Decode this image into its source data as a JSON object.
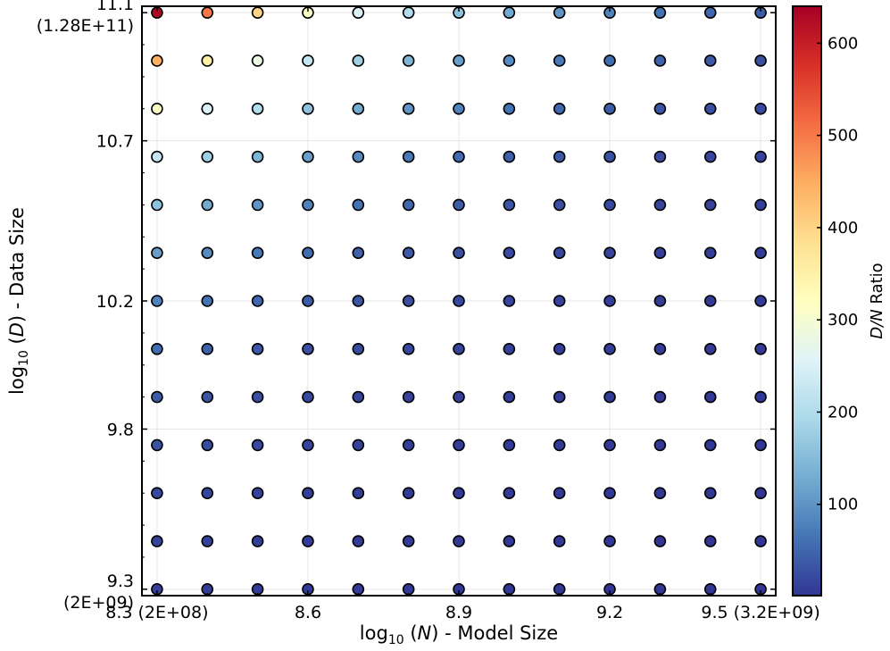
{
  "chart_data": {
    "type": "scatter",
    "xlabel": {
      "prefix": "log",
      "sub": "10",
      "var": "N",
      "suffix": " - Model Size"
    },
    "ylabel": {
      "prefix": "log",
      "sub": "10",
      "var": "D",
      "suffix": " - Data Size"
    },
    "x_values": [
      8.3,
      8.4,
      8.5,
      8.6,
      8.7,
      8.8,
      8.9,
      9.0,
      9.1,
      9.2,
      9.3,
      9.4,
      9.5
    ],
    "y_values": [
      9.3,
      9.45,
      9.6,
      9.75,
      9.9,
      10.05,
      10.2,
      10.35,
      10.5,
      10.65,
      10.8,
      10.95,
      11.1
    ],
    "x_ticks": [
      {
        "value": 8.3,
        "label": "8.3 (2E+08)"
      },
      {
        "value": 8.6,
        "label": "8.6"
      },
      {
        "value": 8.9,
        "label": "8.9"
      },
      {
        "value": 9.2,
        "label": "9.2"
      },
      {
        "value": 9.5,
        "label": "9.5 (3.2E+09)"
      }
    ],
    "y_ticks": [
      {
        "value": 11.1,
        "label": "11.1",
        "label2": "(1.28E+11)"
      },
      {
        "value": 10.7,
        "label": "10.7",
        "label2": ""
      },
      {
        "value": 10.2,
        "label": "10.2",
        "label2": ""
      },
      {
        "value": 9.8,
        "label": "9.8",
        "label2": ""
      },
      {
        "value": 9.3,
        "label": "9.3",
        "label2": "(2E+09)"
      }
    ],
    "xlim": [
      8.27,
      9.53
    ],
    "ylim": [
      9.28,
      11.12
    ],
    "grid": true,
    "colorbar": {
      "label_var": "D/N",
      "label_suffix": " Ratio",
      "range": [
        1,
        640
      ],
      "ticks": [
        100,
        200,
        300,
        400,
        500,
        600
      ],
      "colormap": [
        "#313695",
        "#4575b4",
        "#74add1",
        "#abd9e9",
        "#e0f3f8",
        "#ffffbf",
        "#fee090",
        "#fdae61",
        "#f46d43",
        "#d73027",
        "#a50026"
      ]
    },
    "point_color_rule": "D/N ratio = 10^(y - x), clipped to colorbar range"
  }
}
